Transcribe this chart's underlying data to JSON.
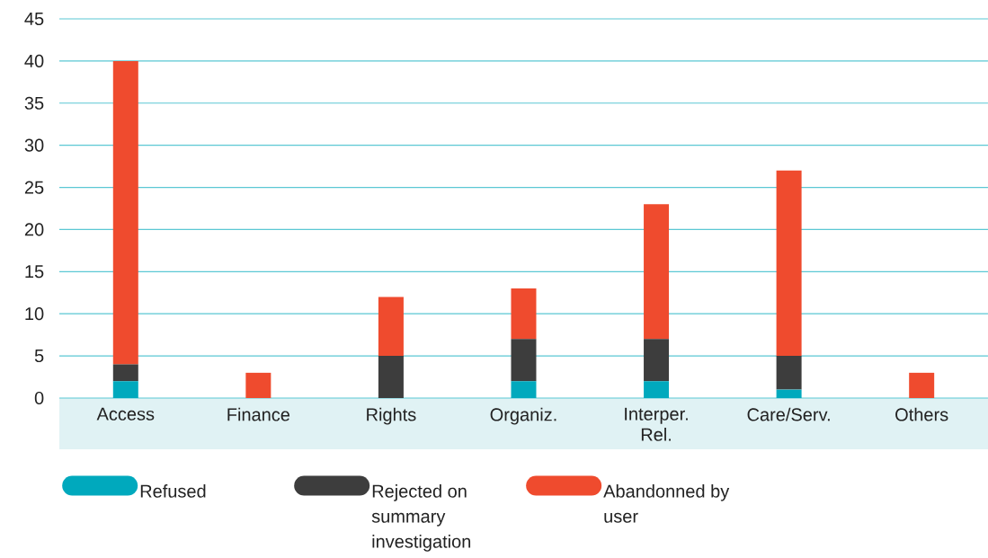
{
  "chart_data": {
    "type": "bar",
    "stacked": true,
    "categories": [
      "Access",
      "Finance",
      "Rights",
      "Organiz.",
      "Interper. Rel.",
      "Care/Serv.",
      "Others"
    ],
    "series": [
      {
        "name": "Refused",
        "color": "#00a9bd",
        "values": [
          2,
          0,
          0,
          2,
          2,
          1,
          0
        ]
      },
      {
        "name": "Rejected on summary investigation",
        "color": "#3d3d3d",
        "values": [
          2,
          0,
          5,
          5,
          5,
          4,
          0
        ]
      },
      {
        "name": "Abandonned by user",
        "color": "#ef4b2e",
        "values": [
          36,
          3,
          7,
          6,
          16,
          22,
          3
        ]
      }
    ],
    "ylim": [
      0,
      45
    ],
    "yticks": [
      0,
      5,
      10,
      15,
      20,
      25,
      30,
      35,
      40,
      45
    ],
    "grid": "y",
    "legend": "bottom"
  }
}
